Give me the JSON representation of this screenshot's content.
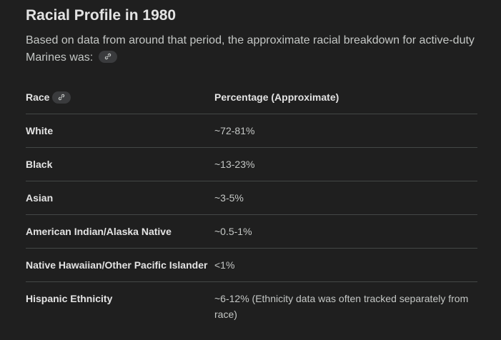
{
  "section": {
    "title": "Racial Profile in 1980",
    "intro": "Based on data from around that period, the approximate racial breakdown for active-duty Marines was:"
  },
  "icons": {
    "source_link": "link-icon"
  },
  "table": {
    "headers": {
      "race": "Race",
      "percentage": "Percentage (Approximate)"
    },
    "rows": [
      {
        "race": "White",
        "percentage": "~72-81%"
      },
      {
        "race": "Black",
        "percentage": "~13-23%"
      },
      {
        "race": "Asian",
        "percentage": "~3-5%"
      },
      {
        "race": "American Indian/Alaska Native",
        "percentage": "~0.5-1%"
      },
      {
        "race": "Native Hawaiian/Other Pacific Islander",
        "percentage": "<1%"
      },
      {
        "race": "Hispanic Ethnicity",
        "percentage": "~6-12% (Ethnicity data was often tracked separately from race)"
      }
    ]
  },
  "colors": {
    "background": "#1f1f1f",
    "text": "#e3e3e3",
    "muted_text": "#c4c7c5",
    "divider": "#444746",
    "chip": "#3a3b3d"
  }
}
